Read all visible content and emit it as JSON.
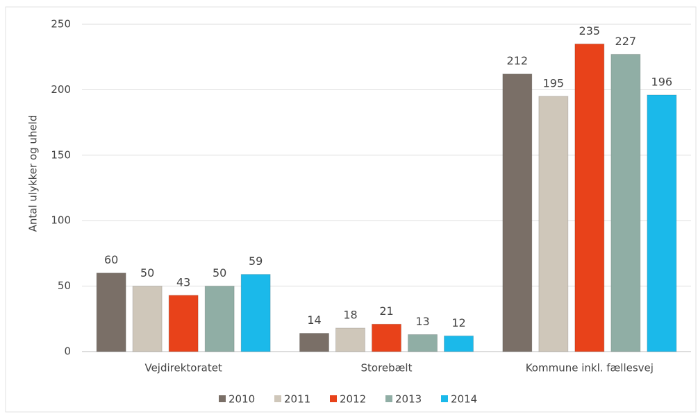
{
  "chart_data": {
    "type": "bar",
    "y_label": "Antal ulykker og uheld",
    "categories": [
      "Vejdirektoratet",
      "Storebælt",
      "Kommune inkl. fællesvej"
    ],
    "series": [
      {
        "name": "2010",
        "color": "#7a6f67",
        "values": [
          60,
          14,
          212
        ]
      },
      {
        "name": "2011",
        "color": "#cfc7ba",
        "values": [
          50,
          18,
          195
        ]
      },
      {
        "name": "2012",
        "color": "#e8421a",
        "values": [
          43,
          21,
          235
        ]
      },
      {
        "name": "2013",
        "color": "#90aea5",
        "values": [
          50,
          13,
          227
        ]
      },
      {
        "name": "2014",
        "color": "#1bb9ea",
        "values": [
          59,
          12,
          196
        ]
      }
    ],
    "ylim": [
      0,
      250
    ],
    "yticks": [
      0,
      50,
      100,
      150,
      200,
      250
    ],
    "grid": true,
    "legend": "bottom"
  }
}
